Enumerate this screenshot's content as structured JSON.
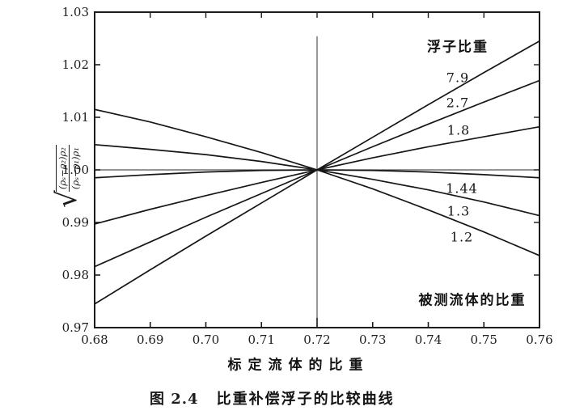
{
  "figure": {
    "legend_title": "浮子比重",
    "lower_annotation": "被测流体的比重",
    "xlabel": "标定流体的比重",
    "caption_prefix": "图 2.4",
    "caption_title": "比重补偿浮子的比较曲线",
    "formula": {
      "radical": "√",
      "numerator": "(ρₛ−ρ₂)ρ₂",
      "denominator": "(ρₛ−ρ₁)ρ₁"
    }
  },
  "colors": {
    "ink": "#1c1c1c",
    "curve": "#161616",
    "reference_line": "#555555"
  },
  "chart_data": {
    "type": "line",
    "title": "图 2.4 比重补偿浮子的比较曲线",
    "xlabel": "标定流体的比重",
    "ylabel": "√[(ρₛ−ρ₂)ρ₂ / ((ρₛ−ρ₁)ρ₁)]",
    "legend_title": "浮子比重",
    "legend_position": "upper-right-inside",
    "grid": false,
    "xlim": [
      0.68,
      0.76
    ],
    "ylim": [
      0.97,
      1.03
    ],
    "x_tick_values": [
      0.68,
      0.69,
      0.7,
      0.71,
      0.72,
      0.73,
      0.74,
      0.75,
      0.76
    ],
    "x_ticks": [
      "0.68",
      "0.69",
      "0.70",
      "0.71",
      "0.72",
      "0.73",
      "0.74",
      "0.75",
      "0.76"
    ],
    "y_tick_values": [
      1.03,
      1.02,
      1.01,
      1.0,
      0.99,
      0.98,
      0.97
    ],
    "y_ticks": [
      "1.03",
      "1.02",
      "1.01",
      "1.00",
      "0.99",
      "0.98",
      "0.97"
    ],
    "x": [
      0.68,
      0.69,
      0.7,
      0.71,
      0.72,
      0.73,
      0.74,
      0.75,
      0.76
    ],
    "series": [
      {
        "name": "7.9",
        "values": [
          0.9745,
          0.981,
          0.9874,
          0.9937,
          1.0,
          1.0062,
          1.0124,
          1.0185,
          1.0245
        ]
      },
      {
        "name": "2.7",
        "values": [
          0.9816,
          0.9863,
          0.991,
          0.9955,
          1.0,
          1.0044,
          1.0087,
          1.0129,
          1.017
        ]
      },
      {
        "name": "1.8",
        "values": [
          0.9897,
          0.9925,
          0.9951,
          0.9976,
          1.0,
          1.0023,
          1.0044,
          1.0063,
          1.0082
        ]
      },
      {
        "name": "1.44",
        "values": [
          0.9985,
          0.9991,
          0.9996,
          0.9999,
          1.0,
          0.9999,
          0.9996,
          0.9991,
          0.9985
        ]
      },
      {
        "name": "1.3",
        "values": [
          1.0048,
          1.0039,
          1.0029,
          1.0016,
          1.0,
          0.9982,
          0.9962,
          0.9939,
          0.9913
        ]
      },
      {
        "name": "1.2",
        "values": [
          1.0115,
          1.0091,
          1.0063,
          1.0033,
          1.0,
          0.9964,
          0.9924,
          0.9882,
          0.9837
        ]
      }
    ],
    "reference_lines": {
      "horizontal": {
        "y": 1.0,
        "x_from": 0.68,
        "x_to": 0.76
      },
      "vertical": {
        "x": 0.72,
        "y_from": 0.97,
        "y_to": 1.0254
      }
    },
    "annotations": [
      {
        "text": "浮子比重",
        "note": "legend title, upper right inside plot"
      },
      {
        "text": "被测流体的比重",
        "note": "lower right inside plot"
      }
    ]
  }
}
